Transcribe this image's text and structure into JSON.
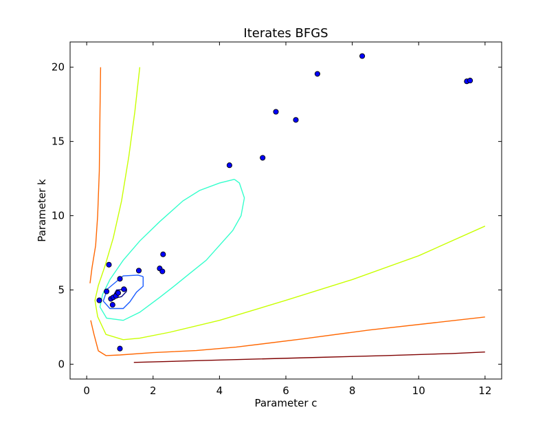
{
  "chart_data": {
    "type": "scatter",
    "title": "Iterates BFGS",
    "xlabel": "Parameter c",
    "ylabel": "Parameter k",
    "xlim": [
      -0.5,
      12.5
    ],
    "ylim": [
      -1,
      21.7
    ],
    "xticks": [
      0,
      2,
      4,
      6,
      8,
      10,
      12
    ],
    "yticks": [
      0,
      5,
      10,
      15,
      20
    ],
    "grid": false,
    "legend": "none",
    "series": [
      {
        "kind": "scatter",
        "color": "#0000ff",
        "edgecolor": "#000000",
        "points": [
          [
            0.38,
            4.3
          ],
          [
            0.6,
            4.9
          ],
          [
            0.67,
            6.7
          ],
          [
            0.73,
            4.4
          ],
          [
            0.78,
            4.0
          ],
          [
            0.8,
            4.5
          ],
          [
            0.88,
            4.6
          ],
          [
            0.95,
            4.8
          ],
          [
            1.0,
            5.75
          ],
          [
            1.0,
            1.05
          ],
          [
            1.12,
            5.05
          ],
          [
            1.57,
            6.3
          ],
          [
            2.2,
            6.45
          ],
          [
            2.28,
            6.25
          ],
          [
            2.3,
            7.4
          ],
          [
            4.3,
            13.4
          ],
          [
            5.3,
            13.9
          ],
          [
            5.7,
            17.0
          ],
          [
            6.3,
            16.45
          ],
          [
            6.95,
            19.55
          ],
          [
            8.3,
            20.75
          ],
          [
            11.45,
            19.05
          ],
          [
            11.55,
            19.1
          ]
        ]
      }
    ],
    "contours": [
      {
        "color": "#7f0000",
        "lines": [
          [
            [
              1.42,
              0.12
            ],
            [
              3.0,
              0.22
            ],
            [
              5.0,
              0.34
            ],
            [
              7.0,
              0.46
            ],
            [
              9.0,
              0.58
            ],
            [
              11.0,
              0.72
            ],
            [
              12.0,
              0.82
            ]
          ]
        ]
      },
      {
        "color": "#ff6600",
        "lines": [
          [
            [
              0.42,
              20.0
            ],
            [
              0.4,
              17.0
            ],
            [
              0.38,
              13.0
            ],
            [
              0.33,
              10.0
            ],
            [
              0.27,
              8.0
            ],
            [
              0.16,
              6.5
            ],
            [
              0.1,
              5.45
            ]
          ],
          [
            [
              0.12,
              2.95
            ],
            [
              0.22,
              2.0
            ],
            [
              0.35,
              0.9
            ],
            [
              0.58,
              0.58
            ],
            [
              1.0,
              0.62
            ],
            [
              2.0,
              0.78
            ],
            [
              3.3,
              0.92
            ],
            [
              4.5,
              1.15
            ],
            [
              6.5,
              1.7
            ],
            [
              8.5,
              2.3
            ],
            [
              10.5,
              2.8
            ],
            [
              12.0,
              3.18
            ]
          ]
        ]
      },
      {
        "color": "#c8ff00",
        "lines": [
          [
            [
              1.6,
              20.0
            ],
            [
              1.45,
              17.0
            ],
            [
              1.27,
              14.0
            ],
            [
              1.05,
              11.0
            ],
            [
              0.8,
              8.5
            ],
            [
              0.55,
              6.6
            ],
            [
              0.35,
              5.3
            ],
            [
              0.25,
              4.3
            ],
            [
              0.33,
              3.2
            ],
            [
              0.58,
              2.0
            ],
            [
              1.1,
              1.65
            ],
            [
              1.6,
              1.75
            ],
            [
              2.5,
              2.15
            ],
            [
              4.0,
              2.95
            ],
            [
              6.0,
              4.3
            ],
            [
              8.0,
              5.7
            ],
            [
              10.0,
              7.3
            ],
            [
              12.0,
              9.3
            ]
          ]
        ]
      },
      {
        "color": "#33ffcc",
        "lines": [
          [
            [
              4.45,
              12.45
            ],
            [
              4.6,
              12.2
            ],
            [
              4.75,
              11.2
            ],
            [
              4.65,
              10.0
            ],
            [
              4.4,
              9.0
            ],
            [
              4.0,
              8.0
            ],
            [
              3.6,
              7.0
            ],
            [
              3.1,
              6.1
            ],
            [
              2.6,
              5.2
            ],
            [
              2.2,
              4.5
            ],
            [
              1.6,
              3.5
            ],
            [
              1.1,
              2.95
            ],
            [
              0.6,
              3.1
            ],
            [
              0.4,
              3.85
            ],
            [
              0.48,
              4.7
            ],
            [
              0.7,
              5.7
            ],
            [
              1.1,
              7.0
            ],
            [
              1.6,
              8.3
            ],
            [
              2.2,
              9.6
            ],
            [
              2.9,
              11.0
            ],
            [
              3.4,
              11.7
            ],
            [
              4.0,
              12.2
            ],
            [
              4.45,
              12.45
            ]
          ]
        ]
      },
      {
        "color": "#1a5cff",
        "lines": [
          [
            [
              1.7,
              5.9
            ],
            [
              1.7,
              5.25
            ],
            [
              1.5,
              4.85
            ],
            [
              1.3,
              4.2
            ],
            [
              1.1,
              3.75
            ],
            [
              0.7,
              3.75
            ],
            [
              0.5,
              4.25
            ],
            [
              0.62,
              5.05
            ],
            [
              1.1,
              5.95
            ],
            [
              1.55,
              6.0
            ],
            [
              1.7,
              5.9
            ]
          ]
        ]
      },
      {
        "color": "#000080",
        "lines": [
          [
            [
              1.2,
              4.9
            ],
            [
              1.05,
              4.55
            ],
            [
              0.75,
              4.4
            ],
            [
              0.9,
              5.0
            ],
            [
              1.2,
              5.05
            ],
            [
              1.2,
              4.9
            ]
          ]
        ]
      }
    ]
  }
}
